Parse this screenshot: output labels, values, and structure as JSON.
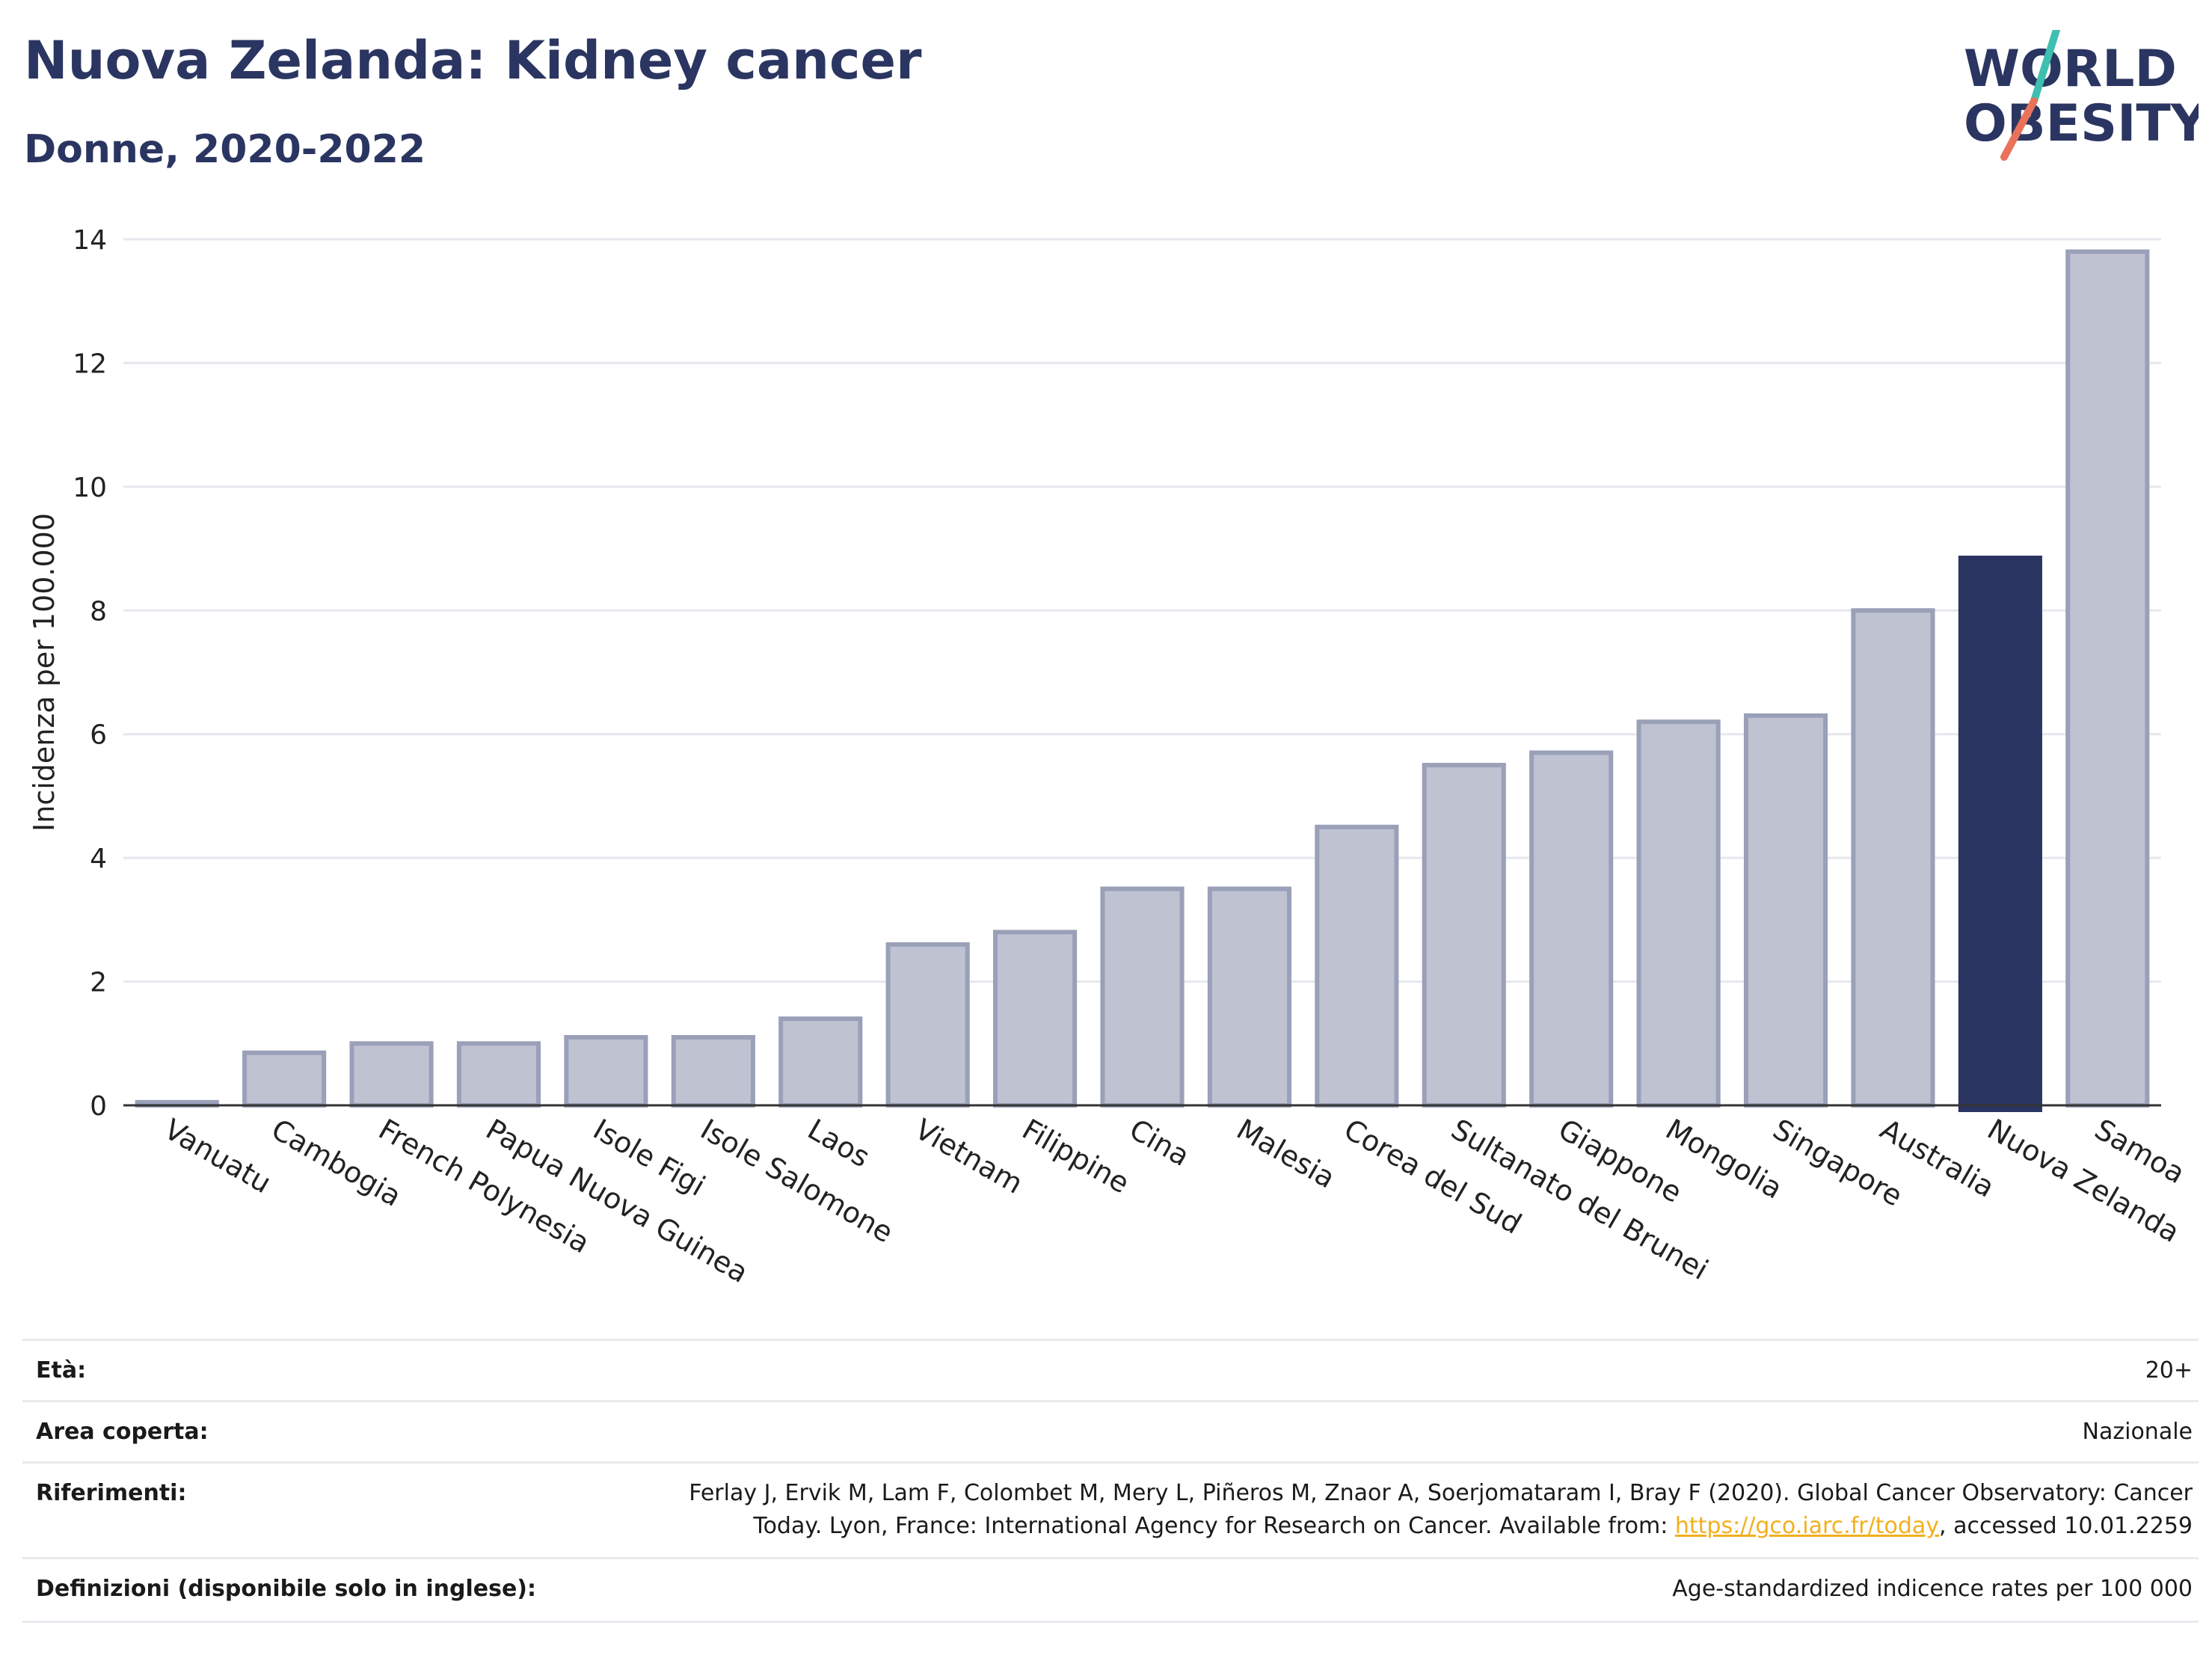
{
  "header": {
    "title": "Nuova Zelanda: Kidney cancer",
    "subtitle": "Donne, 2020-2022"
  },
  "logo": {
    "line1": "WORLD",
    "line2": "OBESITY",
    "colors": {
      "text": "#2b3561",
      "slash_teal": "#3fbfb0",
      "slash_red": "#e8735a"
    }
  },
  "colors": {
    "bar_default": "#bfc2d1",
    "bar_border": "#9aa0b8",
    "bar_highlight": "#2b3561",
    "grid": "#e6e8ee",
    "axis": "#333333"
  },
  "chart_data": {
    "type": "bar",
    "ylabel": "Incidenza per 100.000",
    "ylim": [
      0,
      14
    ],
    "yticks": [
      0,
      2,
      4,
      6,
      8,
      10,
      12,
      14
    ],
    "grid": true,
    "highlight": "Nuova Zelanda",
    "categories": [
      "Vanuatu",
      "Cambogia",
      "French Polynesia",
      "Papua Nuova Guinea",
      "Isole Figi",
      "Isole Salomone",
      "Laos",
      "Vietnam",
      "Filippine",
      "Cina",
      "Malesia",
      "Corea del Sud",
      "Sultanato del Brunei",
      "Giappone",
      "Mongolia",
      "Singapore",
      "Australia",
      "Nuova Zelanda",
      "Samoa"
    ],
    "values": [
      0.05,
      0.85,
      1.0,
      1.0,
      1.1,
      1.1,
      1.4,
      2.6,
      2.8,
      3.5,
      3.5,
      4.5,
      5.5,
      5.7,
      6.2,
      6.3,
      8.0,
      8.85,
      13.8
    ]
  },
  "meta": [
    {
      "label": "Età:",
      "value": "20+"
    },
    {
      "label": "Area coperta:",
      "value": "Nazionale"
    },
    {
      "label": "Riferimenti:",
      "value_line1": "Ferlay J, Ervik M, Lam F, Colombet M, Mery L, Piñeros M, Znaor A, Soerjomataram I, Bray F (2020). Global Cancer Observatory: Cancer",
      "value_line2_pre": "Today. Lyon, France: International Agency for Research on Cancer. Available from: ",
      "link": "https://gco.iarc.fr/today",
      "value_line2_post": ", accessed 10.01.2259"
    },
    {
      "label": "Definizioni (disponibile solo in inglese):",
      "value": "Age-standardized indicence rates per 100 000"
    }
  ]
}
